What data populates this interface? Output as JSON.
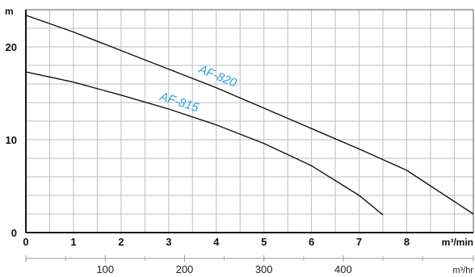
{
  "chart_data": {
    "type": "line",
    "x_unit": "m³/min",
    "y_unit": "m",
    "secondary_x_unit": "m³/hr",
    "xlim": [
      0,
      9.4
    ],
    "ylim": [
      0,
      24
    ],
    "x_ticks": [
      "0",
      "1",
      "2",
      "3",
      "4",
      "5",
      "6",
      "7",
      "8"
    ],
    "y_ticks": [
      "0",
      "10",
      "20"
    ],
    "secondary_x_ticks": [
      "100",
      "200",
      "300",
      "400"
    ],
    "grid": true,
    "series_color": "#2aa0d8",
    "series": [
      {
        "name": "AF-820",
        "x": [
          0,
          1,
          2,
          3,
          4,
          5,
          6,
          7,
          8,
          9.4
        ],
        "y": [
          23.4,
          21.6,
          19.6,
          17.6,
          15.6,
          13.4,
          11.2,
          9.0,
          6.7,
          2.0
        ]
      },
      {
        "name": "AF-815",
        "x": [
          0,
          1,
          2,
          3,
          4,
          5,
          6,
          7,
          7.5
        ],
        "y": [
          17.3,
          16.2,
          14.8,
          13.3,
          11.6,
          9.6,
          7.2,
          4.0,
          1.9
        ]
      }
    ]
  }
}
